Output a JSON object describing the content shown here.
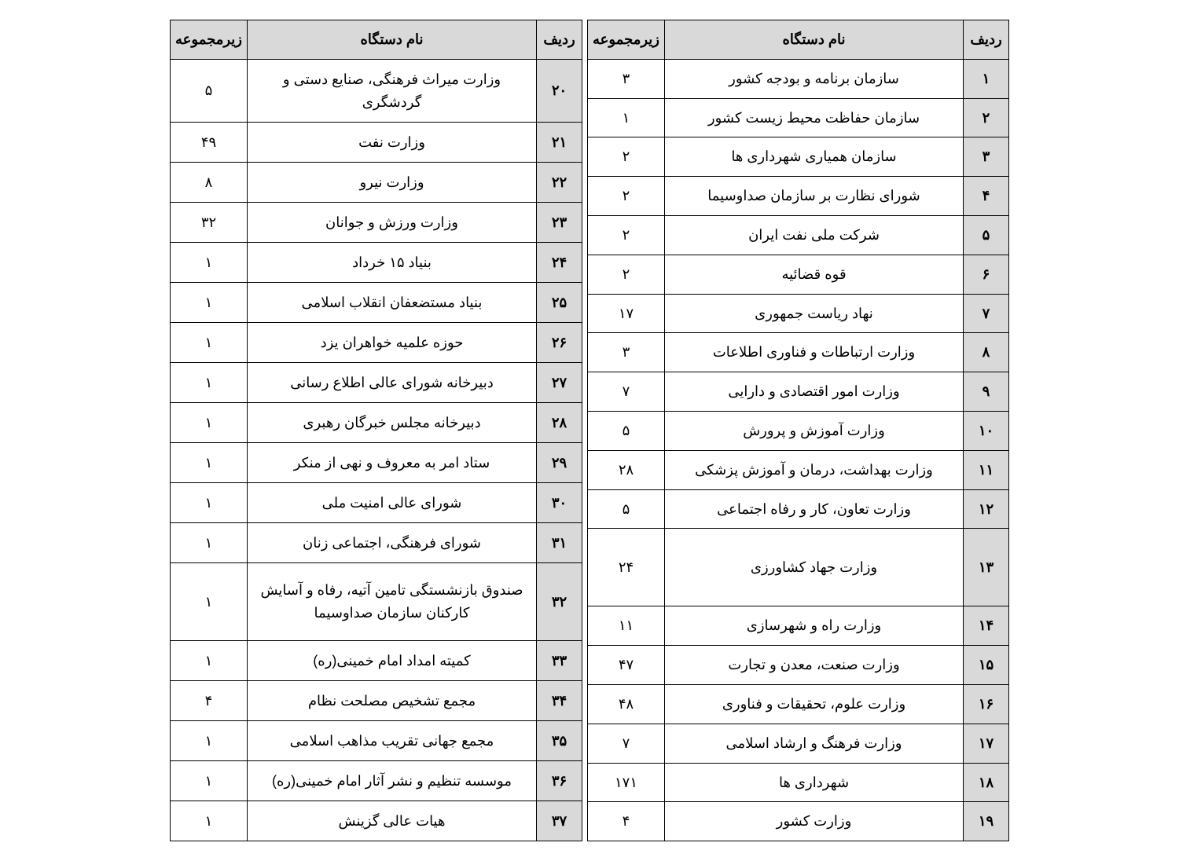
{
  "headers": {
    "idx": "ردیف",
    "name": "نام دستگاه",
    "sub": "زیرمجموعه"
  },
  "right": [
    {
      "idx": "۱",
      "name": "سازمان برنامه و بودجه کشور",
      "sub": "۳"
    },
    {
      "idx": "۲",
      "name": "سازمان حفاظت محیط زیست کشور",
      "sub": "۱"
    },
    {
      "idx": "۳",
      "name": "سازمان همیاری شهرداری ها",
      "sub": "۲"
    },
    {
      "idx": "۴",
      "name": "شورای نظارت بر سازمان صداوسیما",
      "sub": "۲"
    },
    {
      "idx": "۵",
      "name": "شرکت ملی نفت ایران",
      "sub": "۲"
    },
    {
      "idx": "۶",
      "name": "قوه قضائیه",
      "sub": "۲"
    },
    {
      "idx": "۷",
      "name": "نهاد ریاست جمهوری",
      "sub": "۱۷"
    },
    {
      "idx": "۸",
      "name": "وزارت ارتباطات و فناوری اطلاعات",
      "sub": "۳"
    },
    {
      "idx": "۹",
      "name": "وزارت امور اقتصادی و دارایی",
      "sub": "۷"
    },
    {
      "idx": "۱۰",
      "name": "وزارت آموزش و پرورش",
      "sub": "۵"
    },
    {
      "idx": "۱۱",
      "name": "وزارت بهداشت، درمان و آموزش پزشکی",
      "sub": "۲۸"
    },
    {
      "idx": "۱۲",
      "name": "وزارت تعاون، کار و رفاه اجتماعی",
      "sub": "۵"
    },
    {
      "idx": "۱۳",
      "name": "وزارت جهاد کشاورزی",
      "sub": "۲۴"
    },
    {
      "idx": "۱۴",
      "name": "وزارت راه و شهرسازی",
      "sub": "۱۱"
    },
    {
      "idx": "۱۵",
      "name": "وزارت صنعت، معدن و تجارت",
      "sub": "۴۷"
    },
    {
      "idx": "۱۶",
      "name": "وزارت علوم، تحقیقات و فناوری",
      "sub": "۴۸"
    },
    {
      "idx": "۱۷",
      "name": "وزارت فرهنگ و ارشاد اسلامی",
      "sub": "۷"
    },
    {
      "idx": "۱۸",
      "name": "شهرداری ها",
      "sub": "۱۷۱"
    },
    {
      "idx": "۱۹",
      "name": "وزارت کشور",
      "sub": "۴"
    }
  ],
  "left": [
    {
      "idx": "۲۰",
      "name": "وزارت میراث فرهنگی، صنایع دستی و گردشگری",
      "sub": "۵"
    },
    {
      "idx": "۲۱",
      "name": "وزارت نفت",
      "sub": "۴۹"
    },
    {
      "idx": "۲۲",
      "name": "وزارت نیرو",
      "sub": "۸"
    },
    {
      "idx": "۲۳",
      "name": "وزارت ورزش و جوانان",
      "sub": "۳۲"
    },
    {
      "idx": "۲۴",
      "name": "بنیاد ۱۵ خرداد",
      "sub": "۱"
    },
    {
      "idx": "۲۵",
      "name": "بنیاد مستضعفان انقلاب اسلامی",
      "sub": "۱"
    },
    {
      "idx": "۲۶",
      "name": "حوزه علمیه خواهران یزد",
      "sub": "۱"
    },
    {
      "idx": "۲۷",
      "name": "دبیرخانه شورای عالی اطلاع رسانی",
      "sub": "۱"
    },
    {
      "idx": "۲۸",
      "name": "دبیرخانه مجلس خبرگان رهبری",
      "sub": "۱"
    },
    {
      "idx": "۲۹",
      "name": "ستاد امر به معروف و نهی از منکر",
      "sub": "۱"
    },
    {
      "idx": "۳۰",
      "name": "شورای عالی امنیت ملی",
      "sub": "۱"
    },
    {
      "idx": "۳۱",
      "name": "شورای فرهنگی، اجتماعی زنان",
      "sub": "۱"
    },
    {
      "idx": "۳۲",
      "name": "صندوق بازنشستگی تامین آتیه، رفاه و آسایش کارکنان سازمان صداوسیما",
      "sub": "۱"
    },
    {
      "idx": "۳۳",
      "name": "کمیته امداد امام خمینی(ره)",
      "sub": "۱"
    },
    {
      "idx": "۳۴",
      "name": "مجمع تشخیص مصلحت نظام",
      "sub": "۴"
    },
    {
      "idx": "۳۵",
      "name": "مجمع جهانی تقریب مذاهب اسلامی",
      "sub": "۱"
    },
    {
      "idx": "۳۶",
      "name": "موسسه تنظیم و نشر آثار امام خمینی(ره)",
      "sub": "۱"
    },
    {
      "idx": "۳۷",
      "name": "هیات عالی گزینش",
      "sub": "۱"
    }
  ],
  "styling": {
    "header_bg": "#d9d9d9",
    "idx_bg": "#d9d9d9",
    "border_color": "#000000",
    "bg": "#ffffff",
    "font_size_pt": 13,
    "font_family": "Tahoma"
  }
}
